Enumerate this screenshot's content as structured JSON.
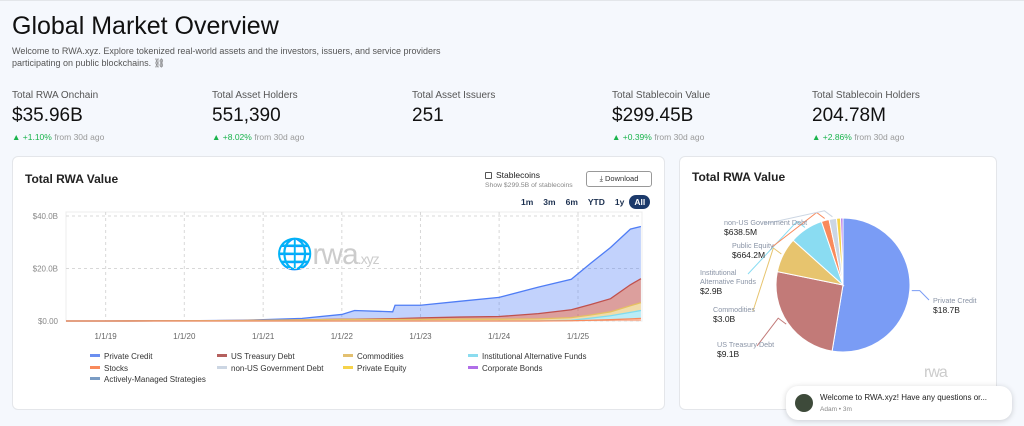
{
  "header": {
    "title": "Global Market Overview",
    "description": "Welcome to RWA.xyz. Explore tokenized real-world assets and the investors, issuers, and service providers participating on public blockchains. ⛓"
  },
  "stats": [
    {
      "label": "Total RWA Onchain",
      "value": "$35.96B",
      "change": "▲ +1.10%",
      "suffix": "from 30d ago"
    },
    {
      "label": "Total Asset Holders",
      "value": "551,390",
      "change": "▲ +8.02%",
      "suffix": "from 30d ago"
    },
    {
      "label": "Total Asset Issuers",
      "value": "251"
    },
    {
      "label": "Total Stablecoin Value",
      "value": "$299.45B",
      "change": "▲ +0.39%",
      "suffix": "from 30d ago"
    },
    {
      "label": "Total Stablecoin Holders",
      "value": "204.78M",
      "change": "▲ +2.86%",
      "suffix": "from 30d ago"
    }
  ],
  "area_card": {
    "title": "Total RWA Value",
    "stablecoins_label": "Stablecoins",
    "stablecoins_sub": "Show $299.5B of stablecoins",
    "download": "Download",
    "ranges": [
      "1m",
      "3m",
      "6m",
      "YTD",
      "1y",
      "All"
    ],
    "active_range": "All",
    "watermark": "rwa",
    "watermark_suffix": ".xyz"
  },
  "pie_card": {
    "title": "Total RWA Value",
    "watermark": "rwa"
  },
  "toast": {
    "message": "Welcome to RWA.xyz! Have any questions or...",
    "meta": "Adam • 3m"
  },
  "chart_data": [
    {
      "type": "area",
      "stacked": true,
      "grid": true,
      "ylim": [
        0,
        40
      ],
      "y_ticks": [
        "$0.00",
        "$20.0B",
        "$40.0B"
      ],
      "y_tick_values": [
        0,
        20,
        40
      ],
      "x_ticks": [
        "1/1/19",
        "1/1/20",
        "1/1/21",
        "1/1/22",
        "1/1/23",
        "1/1/24",
        "1/1/25"
      ],
      "x": [
        "2018-07-01",
        "2019-01-01",
        "2020-01-01",
        "2020-10-01",
        "2021-01-01",
        "2021-07-01",
        "2022-01-01",
        "2022-03-01",
        "2022-08-25",
        "2022-09-05",
        "2023-01-01",
        "2023-07-01",
        "2024-01-01",
        "2024-07-01",
        "2024-12-01",
        "2025-03-01",
        "2025-06-01",
        "2025-09-01",
        "2025-10-20"
      ],
      "series": [
        {
          "name": "Stocks",
          "color": "#f98a5c",
          "values": [
            0,
            0,
            0,
            0,
            0,
            0,
            0,
            0,
            0,
            0,
            0,
            0,
            0,
            0,
            0.1,
            0.3,
            0.5,
            0.8,
            1.0
          ]
        },
        {
          "name": "Institutional Alternative Funds",
          "color": "#7fdcf0",
          "values": [
            0,
            0,
            0,
            0,
            0,
            0,
            0,
            0,
            0,
            0,
            0,
            0,
            0,
            0,
            0.2,
            0.8,
            1.5,
            2.5,
            3.0
          ]
        },
        {
          "name": "Commodities",
          "color": "#e5c063",
          "values": [
            0,
            0,
            0.1,
            0.2,
            0.3,
            0.4,
            0.6,
            0.6,
            0.6,
            0.6,
            0.6,
            0.7,
            0.7,
            0.8,
            1.0,
            1.2,
            1.5,
            2.5,
            3.0
          ]
        },
        {
          "name": "US Treasury Debt",
          "color": "#c0514d",
          "values": [
            0,
            0,
            0,
            0,
            0,
            0,
            0.1,
            0.1,
            0.3,
            0.3,
            0.6,
            0.8,
            1.0,
            2.0,
            3.0,
            4.0,
            5.0,
            8.0,
            9.1
          ]
        },
        {
          "name": "Private Credit",
          "color": "#4f7df5",
          "values": [
            0,
            0,
            0,
            0.1,
            0.2,
            0.6,
            1.8,
            3.3,
            2.6,
            5.1,
            4.8,
            6.0,
            7.3,
            10.1,
            11.6,
            15.7,
            19.5,
            21.2,
            19.9
          ]
        }
      ],
      "legend": [
        {
          "name": "Private Credit",
          "color": "#6b8ff0"
        },
        {
          "name": "US Treasury Debt",
          "color": "#b5605e"
        },
        {
          "name": "Commodities",
          "color": "#e3c070"
        },
        {
          "name": "Institutional Alternative Funds",
          "color": "#8bdcef"
        },
        {
          "name": "Stocks",
          "color": "#f98a5c"
        },
        {
          "name": "non-US Government Debt",
          "color": "#ccd6e3"
        },
        {
          "name": "Private Equity",
          "color": "#f6d34a"
        },
        {
          "name": "Corporate Bonds",
          "color": "#b06ee8"
        },
        {
          "name": "Actively-Managed Strategies",
          "color": "#7a9cc4"
        }
      ]
    },
    {
      "type": "pie",
      "slices": [
        {
          "name": "Private Credit",
          "value": 18.7,
          "label": "$18.7B",
          "color": "#7a9cf5"
        },
        {
          "name": "US Treasury Debt",
          "value": 9.1,
          "label": "$9.1B",
          "color": "#c27a78"
        },
        {
          "name": "Commodities",
          "value": 3.0,
          "label": "$3.0B",
          "color": "#e7c46e"
        },
        {
          "name": "Institutional Alternative Funds",
          "value": 2.9,
          "label": "$2.9B",
          "color": "#8adcf2"
        },
        {
          "name": "Public Equity",
          "value": 0.6642,
          "label": "$664.2M",
          "color": "#f98a5c"
        },
        {
          "name": "non-US Government Debt",
          "value": 0.6385,
          "label": "$638.5M",
          "color": "#ccd6e3"
        },
        {
          "name": "Private Equity",
          "value": 0.35,
          "color": "#f6d34a"
        },
        {
          "name": "Corporate Bonds",
          "value": 0.2,
          "color": "#b06ee8"
        }
      ]
    }
  ]
}
